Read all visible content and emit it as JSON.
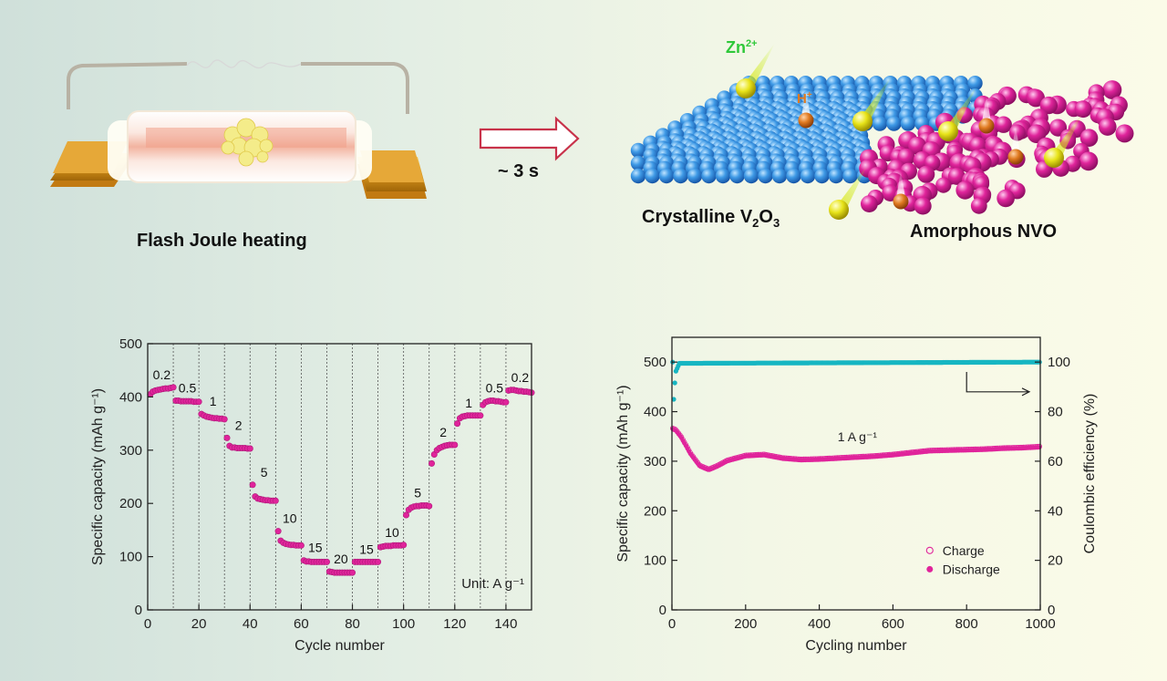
{
  "schematic": {
    "heating_label": "Flash Joule heating",
    "time_label": "~ 3 s",
    "crystal_label": "Crystalline V",
    "crystal_sub1": "2",
    "crystal_o": "O",
    "crystal_sub2": "3",
    "amorphous_label": "Amorphous NVO",
    "zn_label": "Zn",
    "zn_sup": "2+",
    "h_label": "H",
    "h_sup": "+",
    "colors": {
      "crystal": "#2f8ddc",
      "amorphous": "#e0249b",
      "zn": "#e8e41a",
      "h": "#e07a20",
      "arrow": "#c8324a"
    }
  },
  "chart_data": [
    {
      "type": "scatter",
      "xlabel": "Cycle number",
      "ylabel": "Specific capacity (mAh g⁻¹)",
      "xlim": [
        0,
        150
      ],
      "ylim": [
        0,
        500
      ],
      "xticks": [
        0,
        20,
        40,
        60,
        80,
        100,
        120,
        140
      ],
      "yticks": [
        0,
        100,
        200,
        300,
        400,
        500
      ],
      "unit_note": "Unit: A g⁻¹",
      "segment_boundaries": [
        10,
        20,
        30,
        40,
        50,
        60,
        70,
        80,
        90,
        100,
        110,
        120,
        130,
        140
      ],
      "segments": [
        {
          "label": "0.2",
          "x0": 1,
          "x1": 10,
          "values": [
            405,
            410,
            412,
            413,
            414,
            415,
            416,
            416,
            417,
            418
          ]
        },
        {
          "label": "0.5",
          "x0": 11,
          "x1": 20,
          "values": [
            393,
            393,
            392,
            392,
            392,
            392,
            392,
            391,
            391,
            391
          ]
        },
        {
          "label": "1",
          "x0": 21,
          "x1": 30,
          "values": [
            368,
            365,
            363,
            362,
            361,
            360,
            360,
            359,
            359,
            358
          ]
        },
        {
          "label": "2",
          "x0": 31,
          "x1": 40,
          "values": [
            323,
            308,
            305,
            305,
            304,
            304,
            304,
            304,
            303,
            303
          ]
        },
        {
          "label": "5",
          "x0": 41,
          "x1": 50,
          "values": [
            235,
            213,
            209,
            208,
            207,
            206,
            206,
            205,
            205,
            205
          ]
        },
        {
          "label": "10",
          "x0": 51,
          "x1": 60,
          "values": [
            148,
            130,
            126,
            124,
            123,
            122,
            122,
            121,
            121,
            121
          ]
        },
        {
          "label": "15",
          "x0": 61,
          "x1": 70,
          "values": [
            93,
            91,
            91,
            90,
            90,
            90,
            90,
            90,
            90,
            90
          ]
        },
        {
          "label": "20",
          "x0": 71,
          "x1": 80,
          "values": [
            72,
            71,
            70,
            70,
            70,
            70,
            70,
            70,
            70,
            70
          ]
        },
        {
          "label": "15",
          "x0": 81,
          "x1": 90,
          "values": [
            90,
            90,
            90,
            90,
            90,
            90,
            90,
            90,
            90,
            90
          ]
        },
        {
          "label": "10",
          "x0": 91,
          "x1": 100,
          "values": [
            118,
            119,
            120,
            120,
            120,
            121,
            121,
            121,
            121,
            122
          ]
        },
        {
          "label": "5",
          "x0": 101,
          "x1": 110,
          "values": [
            178,
            188,
            192,
            194,
            195,
            195,
            196,
            196,
            196,
            195
          ]
        },
        {
          "label": "2",
          "x0": 111,
          "x1": 120,
          "values": [
            275,
            292,
            300,
            304,
            306,
            308,
            309,
            310,
            310,
            310
          ]
        },
        {
          "label": "1",
          "x0": 121,
          "x1": 130,
          "values": [
            350,
            360,
            363,
            364,
            365,
            365,
            365,
            365,
            365,
            365
          ]
        },
        {
          "label": "0.5",
          "x0": 131,
          "x1": 140,
          "values": [
            385,
            390,
            392,
            393,
            393,
            392,
            392,
            391,
            390,
            390
          ]
        },
        {
          "label": "0.2",
          "x0": 141,
          "x1": 150,
          "values": [
            412,
            413,
            413,
            412,
            411,
            411,
            410,
            410,
            409,
            408
          ]
        }
      ]
    },
    {
      "type": "scatter",
      "xlabel": "Cycling number",
      "ylabel": "Specific capacity (mAh g⁻¹)",
      "y2label": "Coulombic efficiency (%)",
      "xlim": [
        0,
        1000
      ],
      "ylim": [
        0,
        550
      ],
      "y2lim": [
        0,
        110
      ],
      "xticks": [
        0,
        200,
        400,
        600,
        800,
        1000
      ],
      "yticks": [
        0,
        100,
        200,
        300,
        400,
        500
      ],
      "y2ticks": [
        0,
        20,
        40,
        60,
        80,
        100
      ],
      "annotation": "1 A g⁻¹",
      "legend": [
        "Charge",
        "Discharge"
      ],
      "legend_position": "bottom-right",
      "capacity_curve": [
        [
          1,
          365
        ],
        [
          10,
          362
        ],
        [
          25,
          348
        ],
        [
          50,
          315
        ],
        [
          75,
          290
        ],
        [
          100,
          282
        ],
        [
          125,
          290
        ],
        [
          150,
          300
        ],
        [
          200,
          310
        ],
        [
          250,
          312
        ],
        [
          300,
          305
        ],
        [
          350,
          302
        ],
        [
          400,
          303
        ],
        [
          450,
          305
        ],
        [
          500,
          307
        ],
        [
          550,
          309
        ],
        [
          600,
          312
        ],
        [
          650,
          316
        ],
        [
          700,
          320
        ],
        [
          750,
          321
        ],
        [
          800,
          322
        ],
        [
          850,
          323
        ],
        [
          900,
          325
        ],
        [
          950,
          326
        ],
        [
          1000,
          328
        ]
      ],
      "efficiency_curve": [
        [
          5,
          85
        ],
        [
          10,
          96
        ],
        [
          20,
          99.5
        ],
        [
          1000,
          100
        ]
      ],
      "series": [
        {
          "name": "Charge",
          "color": "#e0249b",
          "marker": "open-circle"
        },
        {
          "name": "Discharge",
          "color": "#e0249b",
          "marker": "filled-circle"
        },
        {
          "color": "#17b6c2",
          "marker": "filled-circle",
          "axis": "right"
        }
      ]
    }
  ]
}
